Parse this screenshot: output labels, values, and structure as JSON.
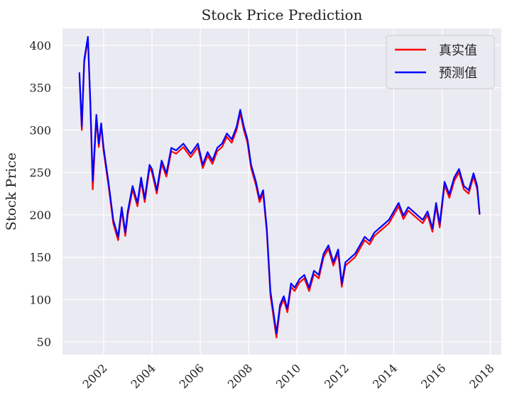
{
  "chart_data": {
    "type": "line",
    "title": "Stock Price Prediction",
    "xlabel": "",
    "ylabel": "Stock Price",
    "xlim": [
      2000.3,
      2018.45
    ],
    "ylim": [
      35,
      420
    ],
    "x_ticks": [
      "2002",
      "2004",
      "2006",
      "2008",
      "2010",
      "2012",
      "2014",
      "2016",
      "2018"
    ],
    "y_ticks": [
      "50",
      "100",
      "150",
      "200",
      "250",
      "300",
      "350",
      "400"
    ],
    "grid": true,
    "background": "#eaeaf2",
    "legend_position": "top-right",
    "x": [
      2001.0,
      2001.1,
      2001.2,
      2001.35,
      2001.45,
      2001.55,
      2001.7,
      2001.8,
      2001.9,
      2002.0,
      2002.2,
      2002.4,
      2002.6,
      2002.75,
      2002.9,
      2003.0,
      2003.2,
      2003.4,
      2003.55,
      2003.7,
      2003.9,
      2004.0,
      2004.2,
      2004.4,
      2004.6,
      2004.8,
      2005.0,
      2005.3,
      2005.6,
      2005.9,
      2006.1,
      2006.3,
      2006.5,
      2006.7,
      2006.9,
      2007.1,
      2007.3,
      2007.5,
      2007.65,
      2007.8,
      2007.95,
      2008.1,
      2008.3,
      2008.45,
      2008.6,
      2008.75,
      2008.9,
      2009.05,
      2009.15,
      2009.3,
      2009.45,
      2009.6,
      2009.75,
      2009.9,
      2010.1,
      2010.3,
      2010.5,
      2010.7,
      2010.9,
      2011.1,
      2011.3,
      2011.5,
      2011.7,
      2011.85,
      2012.0,
      2012.2,
      2012.4,
      2012.6,
      2012.8,
      2013.0,
      2013.2,
      2013.4,
      2013.6,
      2013.8,
      2014.0,
      2014.2,
      2014.4,
      2014.6,
      2014.8,
      2015.0,
      2015.2,
      2015.4,
      2015.6,
      2015.75,
      2015.9,
      2016.1,
      2016.3,
      2016.5,
      2016.7,
      2016.9,
      2017.1,
      2017.3,
      2017.45,
      2017.55
    ],
    "series": [
      {
        "name": "真实值",
        "color": "#ff0000",
        "values": [
          365,
          300,
          380,
          408,
          330,
          230,
          315,
          280,
          305,
          275,
          235,
          190,
          170,
          205,
          175,
          200,
          230,
          210,
          240,
          215,
          255,
          250,
          225,
          260,
          245,
          275,
          272,
          280,
          268,
          280,
          255,
          270,
          260,
          275,
          280,
          292,
          285,
          300,
          320,
          300,
          285,
          255,
          235,
          215,
          225,
          180,
          105,
          75,
          55,
          90,
          100,
          85,
          115,
          110,
          120,
          125,
          110,
          130,
          125,
          150,
          160,
          140,
          155,
          115,
          140,
          145,
          150,
          160,
          170,
          165,
          175,
          180,
          185,
          190,
          200,
          210,
          195,
          205,
          200,
          195,
          190,
          200,
          180,
          210,
          185,
          235,
          220,
          240,
          250,
          230,
          225,
          245,
          230,
          200
        ]
      },
      {
        "name": "预测值",
        "color": "#0000ff",
        "values": [
          368,
          304,
          383,
          410,
          334,
          240,
          318,
          284,
          308,
          279,
          239,
          194,
          174,
          209,
          179,
          204,
          234,
          214,
          244,
          219,
          259,
          254,
          229,
          264,
          249,
          279,
          276,
          284,
          272,
          284,
          259,
          274,
          264,
          279,
          284,
          296,
          289,
          304,
          324,
          304,
          289,
          259,
          239,
          219,
          229,
          184,
          110,
          80,
          60,
          94,
          104,
          89,
          119,
          114,
          124,
          129,
          114,
          134,
          129,
          154,
          164,
          144,
          159,
          119,
          144,
          149,
          154,
          164,
          174,
          169,
          179,
          184,
          189,
          194,
          204,
          214,
          199,
          209,
          204,
          199,
          194,
          204,
          184,
          214,
          189,
          239,
          224,
          244,
          254,
          234,
          229,
          249,
          234,
          201
        ]
      }
    ],
    "legend_labels": [
      "真实值",
      "预测值"
    ]
  }
}
